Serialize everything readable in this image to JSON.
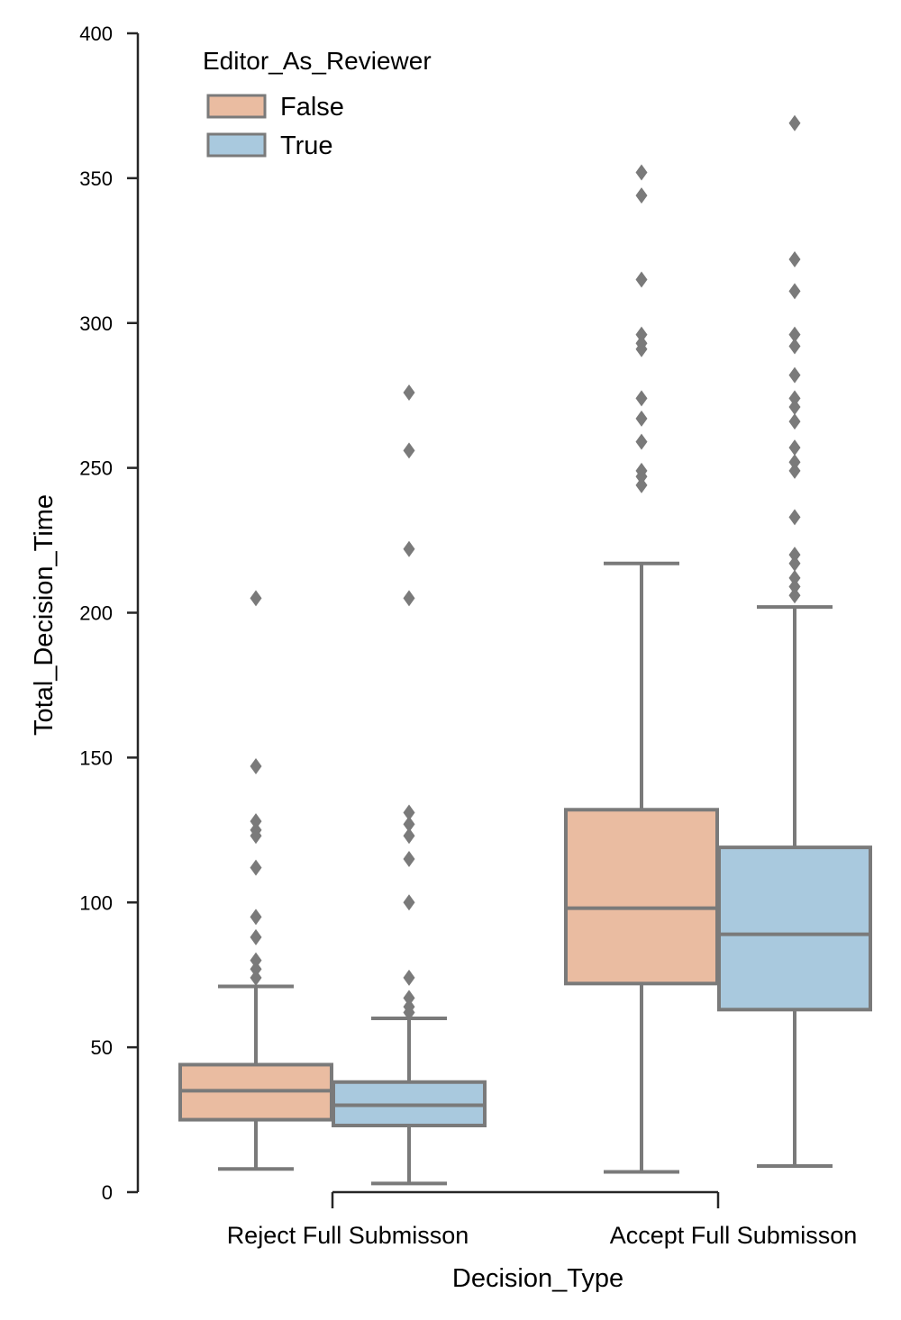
{
  "chart_data": {
    "type": "box",
    "xlabel": "Decision_Type",
    "ylabel": "Total_Decision_Time",
    "ylim": [
      0,
      400
    ],
    "yticks": [
      "0",
      "50",
      "100",
      "150",
      "200",
      "250",
      "300",
      "350",
      "400"
    ],
    "categories": [
      "Reject Full Submisson",
      "Accept Full Submisson"
    ],
    "legend": {
      "title": "Editor_As_Reviewer",
      "placement": "top-left",
      "entries": [
        "False",
        "True"
      ]
    },
    "grid": false,
    "colors": {
      "False": "#eabca1",
      "True": "#a9c9de",
      "edge": "#7a7a7a",
      "axis": "#262626"
    },
    "series": [
      {
        "name": "False",
        "boxes": [
          {
            "category": "Reject Full Submisson",
            "whisker_low": 8,
            "q1": 25,
            "median": 35,
            "q3": 44,
            "whisker_high": 71,
            "outliers": [
              74,
              77,
              80,
              88,
              95,
              112,
              123,
              125,
              128,
              147,
              205
            ]
          },
          {
            "category": "Accept Full Submisson",
            "whisker_low": 7,
            "q1": 72,
            "median": 98,
            "q3": 132,
            "whisker_high": 217,
            "outliers": [
              244,
              247,
              249,
              259,
              267,
              274,
              291,
              293,
              296,
              315,
              344,
              352
            ]
          }
        ]
      },
      {
        "name": "True",
        "boxes": [
          {
            "category": "Reject Full Submisson",
            "whisker_low": 3,
            "q1": 23,
            "median": 30,
            "q3": 38,
            "whisker_high": 60,
            "outliers": [
              62,
              64,
              67,
              74,
              100,
              115,
              123,
              127,
              131,
              205,
              222,
              256,
              276
            ]
          },
          {
            "category": "Accept Full Submisson",
            "whisker_low": 9,
            "q1": 63,
            "median": 89,
            "q3": 119,
            "whisker_high": 202,
            "outliers": [
              206,
              209,
              212,
              217,
              220,
              233,
              249,
              252,
              257,
              266,
              271,
              274,
              282,
              292,
              296,
              311,
              322,
              369
            ]
          }
        ]
      }
    ]
  }
}
